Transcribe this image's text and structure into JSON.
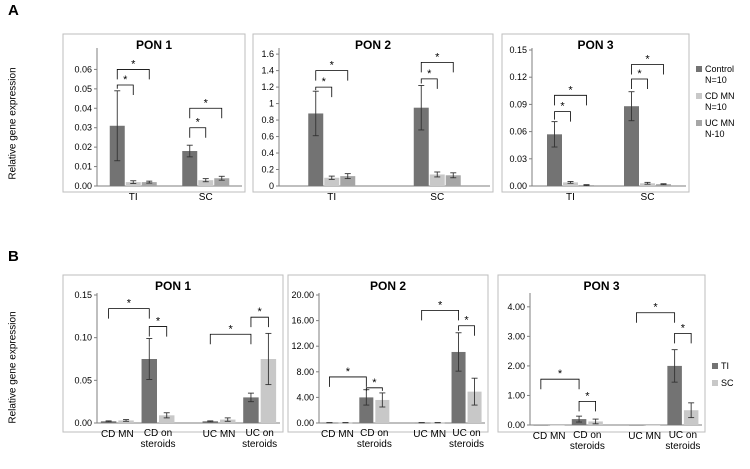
{
  "panels": [
    {
      "label": "A",
      "ylabel": "Relative gene expression"
    },
    {
      "label": "B",
      "ylabel": "Relative gene expression"
    }
  ],
  "legends": {
    "A": [
      {
        "lines": [
          "Control",
          "N=10"
        ],
        "color": "#737373"
      },
      {
        "lines": [
          "CD MN",
          "N=10"
        ],
        "color": "#c8c8c8"
      },
      {
        "lines": [
          "UC MN",
          "N-10"
        ],
        "color": "#a6a6a6"
      }
    ],
    "B": [
      {
        "lines": [
          "TI"
        ],
        "color": "#737373"
      },
      {
        "lines": [
          "SC"
        ],
        "color": "#c8c8c8"
      }
    ]
  },
  "chart_data": [
    {
      "type": "bar",
      "panel": "A",
      "title": "PON 1",
      "categories": [
        "TI",
        "SC"
      ],
      "ylim": [
        0,
        0.07
      ],
      "yticks": [
        "0.00",
        "0.01",
        "0.02",
        "0.03",
        "0.04",
        "0.05",
        "0.06"
      ],
      "series": [
        {
          "name": "Control",
          "values": [
            0.031,
            0.018
          ],
          "errors": [
            0.018,
            0.003
          ]
        },
        {
          "name": "CD MN",
          "values": [
            0.002,
            0.003
          ],
          "errors": [
            0.0007,
            0.0008
          ]
        },
        {
          "name": "UC MN",
          "values": [
            0.002,
            0.004
          ],
          "errors": [
            0.0005,
            0.001
          ]
        }
      ],
      "annotations": [
        {
          "text": "*",
          "cat": 0,
          "from": 0,
          "to": 1,
          "y": 0.052
        },
        {
          "text": "*",
          "cat": 0,
          "from": 0,
          "to": 2,
          "y": 0.06
        },
        {
          "text": "*",
          "cat": 1,
          "from": 0,
          "to": 1,
          "y": 0.03
        },
        {
          "text": "*",
          "cat": 1,
          "from": 0,
          "to": 2,
          "y": 0.04
        }
      ]
    },
    {
      "type": "bar",
      "panel": "A",
      "title": "PON 2",
      "categories": [
        "TI",
        "SC"
      ],
      "ylim": [
        0,
        1.65
      ],
      "yticks": [
        "0",
        "0.2",
        "0.4",
        "0.6",
        "0.8",
        "1",
        "1.2",
        "1.4",
        "1.6"
      ],
      "series": [
        {
          "name": "Control",
          "values": [
            0.88,
            0.95
          ],
          "errors": [
            0.27,
            0.27
          ]
        },
        {
          "name": "CD MN",
          "values": [
            0.1,
            0.14
          ],
          "errors": [
            0.02,
            0.03
          ]
        },
        {
          "name": "UC MN",
          "values": [
            0.12,
            0.13
          ],
          "errors": [
            0.03,
            0.03
          ]
        }
      ],
      "annotations": [
        {
          "text": "*",
          "cat": 0,
          "from": 0,
          "to": 1,
          "y": 1.2
        },
        {
          "text": "*",
          "cat": 0,
          "from": 0,
          "to": 2,
          "y": 1.4
        },
        {
          "text": "*",
          "cat": 1,
          "from": 0,
          "to": 1,
          "y": 1.3
        },
        {
          "text": "*",
          "cat": 1,
          "from": 0,
          "to": 2,
          "y": 1.5
        }
      ]
    },
    {
      "type": "bar",
      "panel": "A",
      "title": "PON 3",
      "categories": [
        "TI",
        "SC"
      ],
      "ylim": [
        0,
        0.15
      ],
      "yticks": [
        "0.00",
        "0.03",
        "0.06",
        "0.09",
        "0.12",
        "0.15"
      ],
      "series": [
        {
          "name": "Control",
          "values": [
            0.057,
            0.088
          ],
          "errors": [
            0.014,
            0.016
          ]
        },
        {
          "name": "CD MN",
          "values": [
            0.004,
            0.003
          ],
          "errors": [
            0.001,
            0.001
          ]
        },
        {
          "name": "UC MN",
          "values": [
            0.001,
            0.002
          ],
          "errors": [
            0.0005,
            0.0005
          ]
        }
      ],
      "annotations": [
        {
          "text": "*",
          "cat": 0,
          "from": 0,
          "to": 1,
          "y": 0.082
        },
        {
          "text": "*",
          "cat": 0,
          "from": 0,
          "to": 2,
          "y": 0.1
        },
        {
          "text": "*",
          "cat": 1,
          "from": 0,
          "to": 1,
          "y": 0.118
        },
        {
          "text": "*",
          "cat": 1,
          "from": 0,
          "to": 2,
          "y": 0.134
        }
      ]
    },
    {
      "type": "bar",
      "panel": "B",
      "title": "PON 1",
      "categories": [
        "CD MN",
        "CD on steroids",
        "UC MN",
        "UC on steroids"
      ],
      "gap_after": 1,
      "ylim": [
        0,
        0.15
      ],
      "yticks": [
        "0.00",
        "0.05",
        "0.10",
        "0.15"
      ],
      "series": [
        {
          "name": "TI",
          "values": [
            0.002,
            0.075,
            0.002,
            0.03
          ],
          "errors": [
            0.0005,
            0.024,
            0.0005,
            0.005
          ]
        },
        {
          "name": "SC",
          "values": [
            0.003,
            0.009,
            0.004,
            0.075
          ],
          "errors": [
            0.001,
            0.003,
            0.002,
            0.03
          ]
        }
      ],
      "annotations": [
        {
          "text": "*",
          "cat_from": 0,
          "cat_to": 1,
          "series_from": 0,
          "series_to": 0,
          "y": 0.134
        },
        {
          "text": "*",
          "cat_from": 1,
          "cat_to": 1,
          "series_from": 0,
          "series_to": 1,
          "y": 0.113
        },
        {
          "text": "*",
          "cat_from": 2,
          "cat_to": 3,
          "series_from": 0,
          "series_to": 0,
          "y": 0.104
        },
        {
          "text": "*",
          "cat_from": 3,
          "cat_to": 3,
          "series_from": 0,
          "series_to": 1,
          "y": 0.124
        }
      ]
    },
    {
      "type": "bar",
      "panel": "B",
      "title": "PON 2",
      "categories": [
        "CD MN",
        "CD on steroids",
        "UC MN",
        "UC on steroids"
      ],
      "gap_after": 1,
      "ylim": [
        0,
        20
      ],
      "yticks": [
        "0.00",
        "4.00",
        "8.00",
        "12.00",
        "16.00",
        "20.00"
      ],
      "series": [
        {
          "name": "TI",
          "values": [
            0.05,
            4.0,
            0.05,
            11.1
          ],
          "errors": [
            0.02,
            1.2,
            0.02,
            3.0
          ]
        },
        {
          "name": "SC",
          "values": [
            0.05,
            3.6,
            0.05,
            4.9
          ],
          "errors": [
            0.02,
            1.1,
            0.02,
            2.1
          ]
        }
      ],
      "annotations": [
        {
          "text": "*",
          "cat_from": 0,
          "cat_to": 1,
          "series_from": 0,
          "series_to": 0,
          "y": 7.2
        },
        {
          "text": "*",
          "cat_from": 1,
          "cat_to": 1,
          "series_from": 0,
          "series_to": 1,
          "y": 5.5
        },
        {
          "text": "*",
          "cat_from": 2,
          "cat_to": 3,
          "series_from": 0,
          "series_to": 0,
          "y": 17.6
        },
        {
          "text": "*",
          "cat_from": 3,
          "cat_to": 3,
          "series_from": 0,
          "series_to": 1,
          "y": 15.2
        }
      ]
    },
    {
      "type": "bar",
      "panel": "B",
      "title": "PON 3",
      "categories": [
        "CD MN",
        "CD on steroids",
        "UC MN",
        "UC on steroids"
      ],
      "gap_after": 1,
      "ylim": [
        0,
        4.4
      ],
      "yticks": [
        "0.00",
        "1.00",
        "2.00",
        "3.00",
        "4.00"
      ],
      "series": [
        {
          "name": "TI",
          "values": [
            0.0,
            0.2,
            0.0,
            2.0
          ],
          "errors": [
            0.0,
            0.1,
            0.0,
            0.55
          ]
        },
        {
          "name": "SC",
          "values": [
            0.0,
            0.12,
            0.0,
            0.5
          ],
          "errors": [
            0.0,
            0.08,
            0.0,
            0.25
          ]
        }
      ],
      "annotations": [
        {
          "text": "*",
          "cat_from": 0,
          "cat_to": 1,
          "series_from": 0,
          "series_to": 0,
          "y": 1.55
        },
        {
          "text": "*",
          "cat_from": 1,
          "cat_to": 1,
          "series_from": 0,
          "series_to": 1,
          "y": 0.8
        },
        {
          "text": "*",
          "cat_from": 2,
          "cat_to": 3,
          "series_from": 0,
          "series_to": 0,
          "y": 3.8
        },
        {
          "text": "*",
          "cat_from": 3,
          "cat_to": 3,
          "series_from": 0,
          "series_to": 1,
          "y": 3.1
        }
      ]
    }
  ]
}
